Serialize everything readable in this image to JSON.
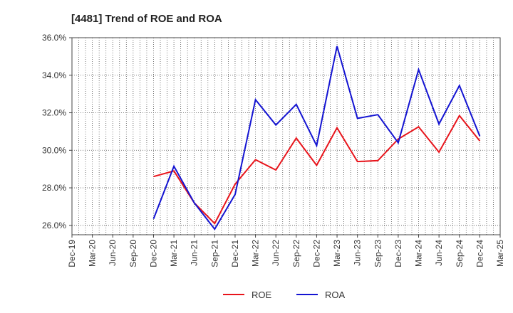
{
  "chart_data": {
    "type": "line",
    "title": "[4481]  Trend of ROE and ROA",
    "xlabel": "",
    "ylabel": "",
    "x": [
      "Dec-19",
      "Mar-20",
      "Jun-20",
      "Sep-20",
      "Dec-20",
      "Mar-21",
      "Jun-21",
      "Sep-21",
      "Dec-21",
      "Mar-22",
      "Jun-22",
      "Sep-22",
      "Dec-22",
      "Mar-23",
      "Jun-23",
      "Sep-23",
      "Dec-23",
      "Mar-24",
      "Jun-24",
      "Sep-24",
      "Dec-24",
      "Mar-25"
    ],
    "ylim": [
      25.5,
      36.0
    ],
    "yticks": [
      26.0,
      28.0,
      30.0,
      32.0,
      34.0,
      36.0
    ],
    "ytick_labels": [
      "26.0%",
      "28.0%",
      "30.0%",
      "32.0%",
      "34.0%",
      "36.0%"
    ],
    "grid": true,
    "legend_position": "bottom",
    "series": [
      {
        "name": "ROE",
        "color": "#e8141b",
        "values": [
          null,
          null,
          null,
          null,
          28.6,
          28.9,
          27.2,
          26.1,
          28.2,
          29.5,
          28.95,
          30.65,
          29.2,
          31.2,
          29.4,
          29.45,
          30.6,
          31.25,
          29.9,
          31.85,
          30.5,
          null
        ]
      },
      {
        "name": "ROA",
        "color": "#1414d2",
        "values": [
          null,
          null,
          null,
          null,
          26.35,
          29.15,
          27.2,
          25.8,
          27.65,
          32.7,
          31.35,
          32.45,
          30.25,
          35.55,
          31.7,
          31.9,
          30.4,
          34.3,
          31.4,
          33.45,
          30.75,
          null
        ]
      }
    ]
  }
}
